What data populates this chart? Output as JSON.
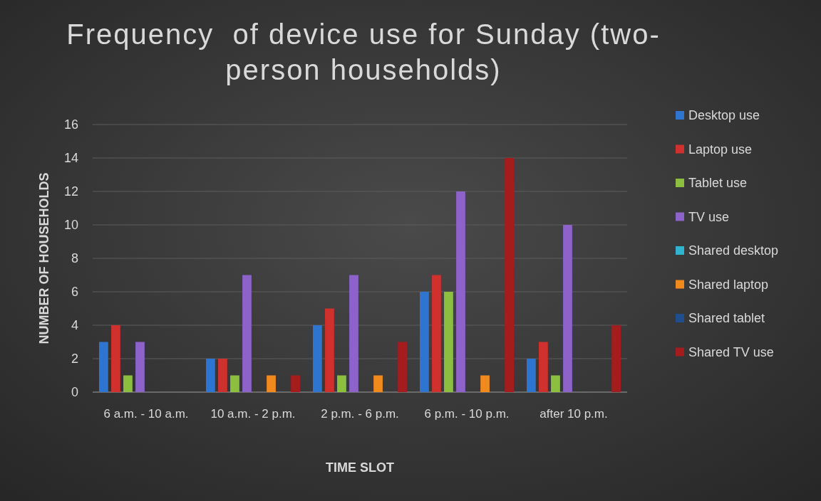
{
  "chart_data": {
    "type": "bar",
    "title": "Frequency  of device use for Sunday (two-person households)",
    "xlabel": "TIME SLOT",
    "ylabel": "NUMBER OF HOUSEHOLDS",
    "categories": [
      "6 a.m. - 10 a.m.",
      "10 a.m. - 2 p.m.",
      "2 p.m. - 6 p.m.",
      "6 p.m. - 10 p.m.",
      "after 10 p.m."
    ],
    "series": [
      {
        "name": "Desktop use",
        "color": "#2e75d0",
        "values": [
          3,
          2,
          4,
          6,
          2
        ]
      },
      {
        "name": "Laptop use",
        "color": "#d0312d",
        "values": [
          4,
          2,
          5,
          7,
          3
        ]
      },
      {
        "name": "Tablet use",
        "color": "#8cbf3f",
        "values": [
          1,
          1,
          1,
          6,
          1
        ]
      },
      {
        "name": "TV use",
        "color": "#8e63c9",
        "values": [
          3,
          7,
          7,
          12,
          10
        ]
      },
      {
        "name": "Shared desktop",
        "color": "#2fb5d0",
        "values": [
          0,
          0,
          0,
          0,
          0
        ]
      },
      {
        "name": "Shared laptop",
        "color": "#f08a1c",
        "values": [
          0,
          1,
          1,
          1,
          0
        ]
      },
      {
        "name": "Shared tablet",
        "color": "#1f4e8c",
        "values": [
          0,
          0,
          0,
          0,
          0
        ]
      },
      {
        "name": "Shared TV use",
        "color": "#a51c1c",
        "values": [
          0,
          1,
          3,
          14,
          4
        ]
      }
    ],
    "ylim": [
      0,
      16
    ],
    "yticks": [
      0,
      2,
      4,
      6,
      8,
      10,
      12,
      14,
      16
    ],
    "grid": "y",
    "legend": "right"
  }
}
